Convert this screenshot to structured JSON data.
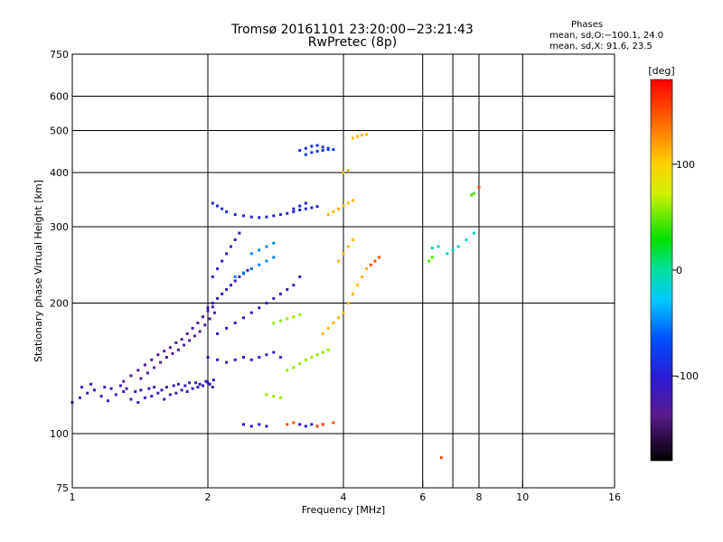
{
  "header": {
    "title_line1": "Tromsø 20161101 23:20:00−23:21:43",
    "title_line2": "RwPretec (8p)"
  },
  "phases": {
    "heading": "Phases",
    "o_stats": "mean, sd,O:−100.1, 24.0",
    "x_stats": "mean, sd,X:  91.6, 23.5"
  },
  "chart_data": {
    "type": "scatter",
    "xscale": "log",
    "yscale": "log",
    "xlabel": "Frequency [MHz]",
    "ylabel": "Stationary phase Virtual Height [km]",
    "xlim": [
      1,
      16
    ],
    "ylim": [
      75,
      750
    ],
    "x_ticks": [
      1,
      2,
      4,
      6,
      8,
      10,
      16
    ],
    "x_tick_labels": [
      "1",
      "2",
      "4",
      "6",
      "8",
      "10",
      "16"
    ],
    "y_ticks": [
      75,
      100,
      200,
      300,
      400,
      500,
      600,
      750
    ],
    "y_tick_labels": [
      "75",
      "100",
      "200",
      "300",
      "400",
      "500",
      "600",
      "750"
    ],
    "grid_x": [
      2,
      4,
      6,
      7,
      8,
      10
    ],
    "grid_y": [
      100,
      200,
      300,
      400,
      500,
      600
    ],
    "colorbar": {
      "label": "[deg]",
      "range": [
        -180,
        180
      ],
      "ticks": [
        100,
        0,
        -100
      ],
      "tick_labels": [
        "100",
        "0",
        "-100"
      ]
    },
    "series": [
      {
        "phase": -115,
        "points": [
          [
            1.0,
            118
          ],
          [
            1.04,
            121
          ],
          [
            1.08,
            124
          ],
          [
            1.12,
            126
          ],
          [
            1.16,
            122
          ],
          [
            1.2,
            119
          ],
          [
            1.25,
            123
          ],
          [
            1.3,
            125
          ],
          [
            1.35,
            120
          ],
          [
            1.4,
            118
          ],
          [
            1.45,
            121
          ],
          [
            1.5,
            122
          ],
          [
            1.55,
            124
          ],
          [
            1.6,
            120
          ],
          [
            1.65,
            123
          ],
          [
            1.7,
            124
          ],
          [
            1.75,
            126
          ],
          [
            1.8,
            125
          ],
          [
            1.85,
            127
          ],
          [
            1.9,
            128
          ],
          [
            1.95,
            129
          ],
          [
            2.0,
            131
          ],
          [
            2.05,
            128
          ],
          [
            1.05,
            128
          ],
          [
            1.1,
            130
          ],
          [
            1.18,
            128
          ],
          [
            1.22,
            127
          ],
          [
            1.28,
            129
          ],
          [
            1.32,
            127
          ],
          [
            1.38,
            125
          ],
          [
            1.42,
            126
          ],
          [
            1.48,
            127
          ],
          [
            1.52,
            128
          ],
          [
            1.58,
            126
          ],
          [
            1.62,
            128
          ],
          [
            1.68,
            129
          ],
          [
            1.72,
            130
          ],
          [
            1.78,
            129
          ],
          [
            1.82,
            131
          ],
          [
            1.88,
            131
          ],
          [
            1.92,
            130
          ],
          [
            1.98,
            132
          ],
          [
            2.02,
            130
          ],
          [
            2.06,
            133
          ]
        ]
      },
      {
        "phase": -130,
        "points": [
          [
            1.3,
            132
          ],
          [
            1.35,
            136
          ],
          [
            1.4,
            140
          ],
          [
            1.45,
            144
          ],
          [
            1.5,
            148
          ],
          [
            1.55,
            152
          ],
          [
            1.6,
            155
          ],
          [
            1.65,
            158
          ],
          [
            1.7,
            162
          ],
          [
            1.75,
            165
          ],
          [
            1.8,
            170
          ],
          [
            1.85,
            175
          ],
          [
            1.9,
            180
          ],
          [
            1.95,
            186
          ],
          [
            2.0,
            192
          ],
          [
            2.05,
            196
          ],
          [
            1.42,
            134
          ],
          [
            1.47,
            138
          ],
          [
            1.52,
            142
          ],
          [
            1.57,
            146
          ],
          [
            1.62,
            150
          ],
          [
            1.67,
            153
          ],
          [
            1.72,
            156
          ],
          [
            1.77,
            160
          ],
          [
            1.82,
            164
          ],
          [
            1.87,
            168
          ],
          [
            1.92,
            172
          ],
          [
            1.97,
            178
          ],
          [
            2.02,
            184
          ],
          [
            2.07,
            190
          ]
        ]
      },
      {
        "phase": -110,
        "points": [
          [
            2.0,
            195
          ],
          [
            2.05,
            200
          ],
          [
            2.1,
            205
          ],
          [
            2.15,
            210
          ],
          [
            2.2,
            215
          ],
          [
            2.25,
            220
          ],
          [
            2.3,
            225
          ],
          [
            2.35,
            230
          ],
          [
            2.4,
            234
          ],
          [
            2.45,
            238
          ],
          [
            2.5,
            240
          ],
          [
            2.05,
            230
          ],
          [
            2.1,
            240
          ],
          [
            2.15,
            250
          ],
          [
            2.2,
            260
          ],
          [
            2.25,
            270
          ],
          [
            2.3,
            280
          ],
          [
            2.35,
            290
          ],
          [
            2.0,
            150
          ],
          [
            2.1,
            148
          ],
          [
            2.2,
            146
          ],
          [
            2.3,
            148
          ],
          [
            2.4,
            150
          ],
          [
            2.5,
            148
          ],
          [
            2.6,
            150
          ],
          [
            2.7,
            152
          ],
          [
            2.8,
            154
          ],
          [
            2.9,
            150
          ],
          [
            2.1,
            170
          ],
          [
            2.2,
            175
          ],
          [
            2.3,
            180
          ],
          [
            2.4,
            185
          ],
          [
            2.5,
            190
          ],
          [
            2.6,
            195
          ],
          [
            2.7,
            200
          ],
          [
            2.8,
            205
          ],
          [
            2.9,
            210
          ],
          [
            3.0,
            215
          ],
          [
            3.1,
            220
          ],
          [
            3.2,
            230
          ]
        ]
      },
      {
        "phase": -95,
        "points": [
          [
            2.05,
            340
          ],
          [
            2.1,
            335
          ],
          [
            2.15,
            330
          ],
          [
            2.2,
            325
          ],
          [
            2.3,
            320
          ],
          [
            2.4,
            318
          ],
          [
            2.5,
            316
          ],
          [
            2.6,
            315
          ],
          [
            2.7,
            316
          ],
          [
            2.8,
            318
          ],
          [
            2.9,
            320
          ],
          [
            3.0,
            322
          ],
          [
            3.1,
            325
          ],
          [
            3.2,
            328
          ],
          [
            3.3,
            330
          ],
          [
            3.4,
            332
          ],
          [
            3.5,
            334
          ],
          [
            3.1,
            330
          ],
          [
            3.2,
            335
          ],
          [
            3.3,
            340
          ]
        ]
      },
      {
        "phase": -85,
        "points": [
          [
            3.2,
            450
          ],
          [
            3.3,
            455
          ],
          [
            3.4,
            460
          ],
          [
            3.5,
            462
          ],
          [
            3.6,
            458
          ],
          [
            3.7,
            455
          ],
          [
            3.8,
            452
          ],
          [
            3.3,
            440
          ],
          [
            3.4,
            445
          ],
          [
            3.5,
            448
          ],
          [
            3.6,
            450
          ],
          [
            3.7,
            452
          ]
        ]
      },
      {
        "phase": -50,
        "points": [
          [
            2.3,
            230
          ],
          [
            2.4,
            235
          ],
          [
            2.5,
            240
          ],
          [
            2.6,
            245
          ],
          [
            2.7,
            250
          ],
          [
            2.8,
            255
          ],
          [
            2.5,
            260
          ],
          [
            2.6,
            265
          ],
          [
            2.7,
            270
          ],
          [
            2.8,
            275
          ]
        ]
      },
      {
        "phase": -100,
        "points": [
          [
            3.2,
            105
          ],
          [
            3.3,
            104
          ],
          [
            3.4,
            105
          ],
          [
            3.5,
            104
          ],
          [
            3.6,
            105
          ],
          [
            2.4,
            105
          ],
          [
            2.5,
            104
          ],
          [
            2.6,
            105
          ],
          [
            2.7,
            104
          ]
        ]
      },
      {
        "phase": 60,
        "points": [
          [
            3.0,
            140
          ],
          [
            3.1,
            142
          ],
          [
            3.2,
            145
          ],
          [
            3.3,
            148
          ],
          [
            3.4,
            150
          ],
          [
            3.5,
            152
          ],
          [
            3.6,
            154
          ],
          [
            3.7,
            156
          ],
          [
            2.8,
            180
          ],
          [
            2.9,
            182
          ],
          [
            3.0,
            184
          ],
          [
            3.1,
            186
          ],
          [
            3.2,
            188
          ],
          [
            2.7,
            123
          ],
          [
            2.8,
            122
          ],
          [
            2.9,
            121
          ]
        ]
      },
      {
        "phase": 110,
        "points": [
          [
            3.6,
            170
          ],
          [
            3.7,
            175
          ],
          [
            3.8,
            180
          ],
          [
            3.9,
            185
          ],
          [
            4.0,
            190
          ],
          [
            4.1,
            200
          ],
          [
            4.2,
            210
          ],
          [
            4.3,
            220
          ],
          [
            4.4,
            230
          ],
          [
            4.5,
            240
          ],
          [
            3.9,
            250
          ],
          [
            4.0,
            260
          ],
          [
            4.1,
            270
          ],
          [
            4.2,
            280
          ],
          [
            3.7,
            320
          ],
          [
            3.8,
            325
          ],
          [
            3.9,
            330
          ],
          [
            4.0,
            335
          ],
          [
            4.1,
            340
          ],
          [
            4.2,
            345
          ],
          [
            4.2,
            480
          ],
          [
            4.3,
            485
          ],
          [
            4.4,
            488
          ],
          [
            4.5,
            490
          ],
          [
            4.0,
            400
          ],
          [
            4.1,
            405
          ]
        ]
      },
      {
        "phase": 150,
        "points": [
          [
            3.0,
            105
          ],
          [
            3.1,
            106
          ],
          [
            3.5,
            104
          ],
          [
            3.6,
            105
          ],
          [
            3.8,
            106
          ],
          [
            4.6,
            245
          ],
          [
            4.7,
            250
          ],
          [
            4.8,
            255
          ],
          [
            6.6,
            88
          ],
          [
            8.0,
            370
          ]
        ]
      },
      {
        "phase": -10,
        "points": [
          [
            6.3,
            268
          ],
          [
            6.5,
            270
          ],
          [
            6.8,
            260
          ],
          [
            7.0,
            265
          ],
          [
            7.2,
            270
          ],
          [
            7.5,
            280
          ],
          [
            7.8,
            290
          ]
        ]
      },
      {
        "phase": 45,
        "points": [
          [
            7.7,
            355
          ],
          [
            7.8,
            358
          ],
          [
            6.2,
            250
          ],
          [
            6.3,
            255
          ]
        ]
      }
    ]
  }
}
